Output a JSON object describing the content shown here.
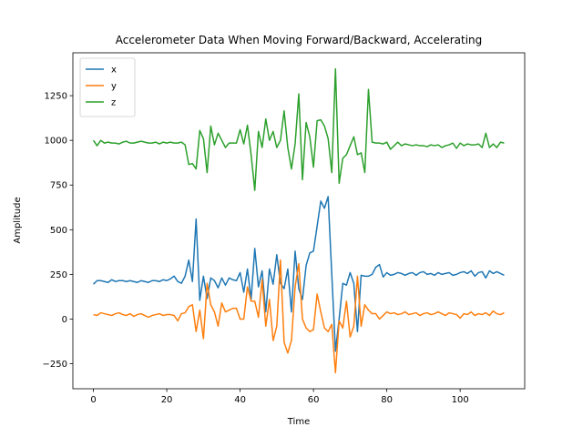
{
  "chart_data": {
    "type": "line",
    "title": "Accelerometer Data When Moving Forward/Backward, Accelerating",
    "xlabel": "Time",
    "ylabel": "Amplitude",
    "x": [
      0,
      1,
      2,
      3,
      4,
      5,
      6,
      7,
      8,
      9,
      10,
      11,
      12,
      13,
      14,
      15,
      16,
      17,
      18,
      19,
      20,
      21,
      22,
      23,
      24,
      25,
      26,
      27,
      28,
      29,
      30,
      31,
      32,
      33,
      34,
      35,
      36,
      37,
      38,
      39,
      40,
      41,
      42,
      43,
      44,
      45,
      46,
      47,
      48,
      49,
      50,
      51,
      52,
      53,
      54,
      55,
      56,
      57,
      58,
      59,
      60,
      61,
      62,
      63,
      64,
      65,
      66,
      67,
      68,
      69,
      70,
      71,
      72,
      73,
      74,
      75,
      76,
      77,
      78,
      79,
      80,
      81,
      82,
      83,
      84,
      85,
      86,
      87,
      88,
      89,
      90,
      91,
      92,
      93,
      94,
      95,
      96,
      97,
      98,
      99,
      100,
      101,
      102,
      103,
      104,
      105,
      106,
      107,
      108,
      109,
      110,
      111,
      112
    ],
    "series": [
      {
        "name": "x",
        "color": "#1f77b4",
        "values": [
          195,
          215,
          215,
          210,
          205,
          220,
          210,
          215,
          215,
          210,
          215,
          210,
          205,
          215,
          210,
          205,
          215,
          215,
          210,
          220,
          215,
          225,
          240,
          210,
          200,
          240,
          330,
          210,
          560,
          105,
          240,
          115,
          230,
          215,
          175,
          230,
          190,
          230,
          220,
          215,
          260,
          150,
          280,
          110,
          395,
          180,
          270,
          40,
          280,
          195,
          360,
          200,
          170,
          280,
          40,
          380,
          170,
          110,
          300,
          370,
          380,
          520,
          660,
          620,
          685,
          250,
          -180,
          0,
          200,
          190,
          260,
          200,
          -70,
          245,
          240,
          240,
          250,
          290,
          305,
          235,
          260,
          245,
          250,
          260,
          255,
          245,
          255,
          260,
          245,
          260,
          265,
          250,
          255,
          245,
          260,
          250,
          255,
          260,
          245,
          250,
          260,
          265,
          255,
          270,
          240,
          260,
          265,
          230,
          270,
          255,
          265,
          255,
          245
        ]
      },
      {
        "name": "y",
        "color": "#ff7f0e",
        "values": [
          25,
          20,
          35,
          30,
          25,
          20,
          30,
          35,
          25,
          20,
          30,
          15,
          25,
          30,
          20,
          10,
          20,
          25,
          30,
          20,
          25,
          25,
          20,
          -10,
          30,
          35,
          70,
          80,
          -70,
          50,
          -110,
          200,
          80,
          40,
          -40,
          90,
          40,
          50,
          60,
          60,
          0,
          0,
          180,
          100,
          100,
          10,
          220,
          -40,
          110,
          -120,
          -40,
          330,
          -130,
          -190,
          -120,
          180,
          310,
          0,
          -50,
          -70,
          -60,
          140,
          40,
          -50,
          -70,
          -30,
          -300,
          -10,
          -50,
          100,
          -100,
          -40,
          240,
          -40,
          80,
          50,
          30,
          30,
          0,
          20,
          40,
          30,
          35,
          25,
          30,
          40,
          25,
          30,
          35,
          20,
          30,
          35,
          25,
          30,
          40,
          30,
          20,
          35,
          30,
          25,
          5,
          30,
          25,
          40,
          20,
          30,
          25,
          35,
          20,
          45,
          30,
          25,
          35
        ]
      },
      {
        "name": "z",
        "color": "#2ca02c",
        "values": [
          1000,
          970,
          1000,
          985,
          990,
          985,
          985,
          980,
          990,
          995,
          985,
          985,
          990,
          995,
          990,
          985,
          985,
          990,
          980,
          990,
          985,
          990,
          985,
          985,
          990,
          975,
          865,
          870,
          840,
          1055,
          1010,
          820,
          1080,
          975,
          1040,
          1000,
          960,
          985,
          985,
          985,
          1060,
          980,
          1085,
          920,
          720,
          1050,
          960,
          1120,
          1000,
          1050,
          960,
          1000,
          1165,
          960,
          840,
          980,
          1260,
          780,
          1100,
          1020,
          850,
          1110,
          1115,
          1080,
          1010,
          820,
          1400,
          760,
          900,
          920,
          970,
          1020,
          920,
          930,
          820,
          1285,
          990,
          985,
          985,
          980,
          990,
          950,
          970,
          990,
          970,
          980,
          975,
          970,
          975,
          970,
          970,
          965,
          975,
          970,
          975,
          960,
          970,
          975,
          985,
          955,
          985,
          970,
          980,
          975,
          975,
          980,
          960,
          1040,
          960,
          980,
          960,
          990,
          985
        ]
      }
    ],
    "xlim": [
      -5.6,
      117.6
    ],
    "xticks": [
      0,
      20,
      40,
      60,
      80,
      100
    ],
    "ylim": [
      -390,
      1490
    ],
    "yticks": [
      {
        "value": -250,
        "label": "−250"
      },
      0,
      250,
      500,
      750,
      1000,
      1250
    ],
    "legend": "upper left"
  }
}
